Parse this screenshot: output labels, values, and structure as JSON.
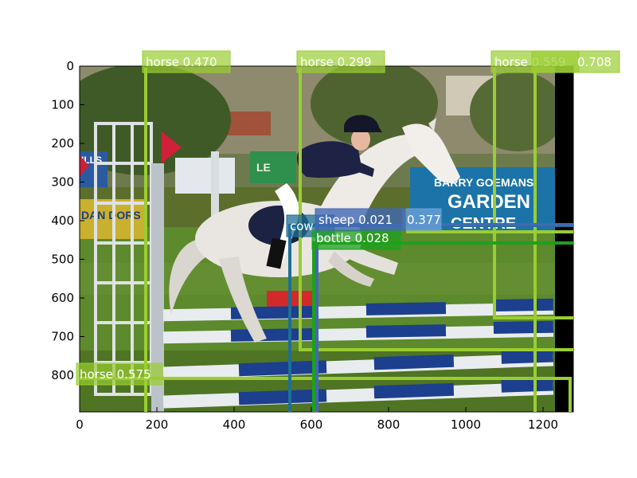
{
  "image_axes": {
    "x_ticks": [
      "0",
      "200",
      "400",
      "600",
      "800",
      "1000",
      "1200"
    ],
    "y_ticks": [
      "0",
      "100",
      "200",
      "300",
      "400",
      "500",
      "600",
      "700",
      "800"
    ]
  },
  "scene": {
    "billboard_line1": "BARRY GOEMANS",
    "billboard_line2": "GARDEN",
    "billboard_line3": "CENTRE",
    "left_sign": "ILLS",
    "left_banner": "DAN DORS",
    "small_sign": "LE"
  },
  "detections": [
    {
      "label": "horse 0.470",
      "color": "#9acd32"
    },
    {
      "label": "horse 0.299",
      "color": "#9acd32"
    },
    {
      "label": "horse 0.559",
      "color": "#9acd32"
    },
    {
      "label": "0.708",
      "color": "#9acd32"
    },
    {
      "label": "cow",
      "color": "#1f6e96"
    },
    {
      "label": "sheep 0.021",
      "color": "#4169b4"
    },
    {
      "label": "0.377",
      "color": "#6a9fd8"
    },
    {
      "label": "bottle 0.028",
      "color": "#1ea01e"
    },
    {
      "label": "horse 0.575",
      "color": "#9acd32"
    }
  ]
}
